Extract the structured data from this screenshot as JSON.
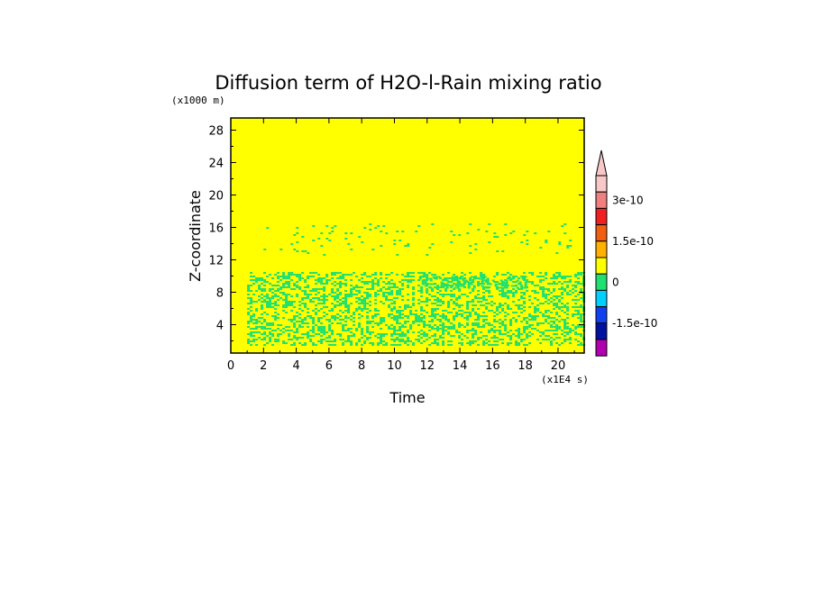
{
  "chart_data": {
    "type": "heatmap",
    "title": "Diffusion term of H2O-l-Rain mixing ratio",
    "xlabel": "Time",
    "ylabel": "Z-coordinate",
    "x_unit": "(x1E4 s)",
    "y_unit": "(x1000 m)",
    "xlim": [
      0,
      21.6
    ],
    "ylim": [
      0.5,
      29.5
    ],
    "x_ticks": [
      "0",
      "2",
      "4",
      "6",
      "8",
      "10",
      "12",
      "14",
      "16",
      "18",
      "20"
    ],
    "y_ticks": [
      "4",
      "8",
      "12",
      "16",
      "20",
      "24",
      "28"
    ],
    "colorbar": {
      "ticks": [
        "3e-10",
        "1.5e-10",
        "0",
        "-1.5e-10"
      ],
      "levels": [
        {
          "color": "#F8C8C8"
        },
        {
          "color": "#F08080"
        },
        {
          "color": "#F02020"
        },
        {
          "color": "#F06010"
        },
        {
          "color": "#FFB000"
        },
        {
          "color": "#FFFF00"
        },
        {
          "color": "#20E070"
        },
        {
          "color": "#00D0FF"
        },
        {
          "color": "#1040F0"
        },
        {
          "color": "#0010A0"
        },
        {
          "color": "#B000B0"
        }
      ],
      "extend_top": true
    },
    "background_color": "#FFFF00",
    "pattern_color": "#20E070",
    "pattern_regions": [
      {
        "x_range": [
          1.0,
          21.6
        ],
        "z_range": [
          1.5,
          10.5
        ]
      },
      {
        "x_range": [
          11.5,
          18.0
        ],
        "z_range": [
          8.5,
          10.0
        ]
      },
      {
        "x_range": [
          2.0,
          21.0
        ],
        "z_range": [
          12.5,
          16.5
        ]
      }
    ]
  }
}
